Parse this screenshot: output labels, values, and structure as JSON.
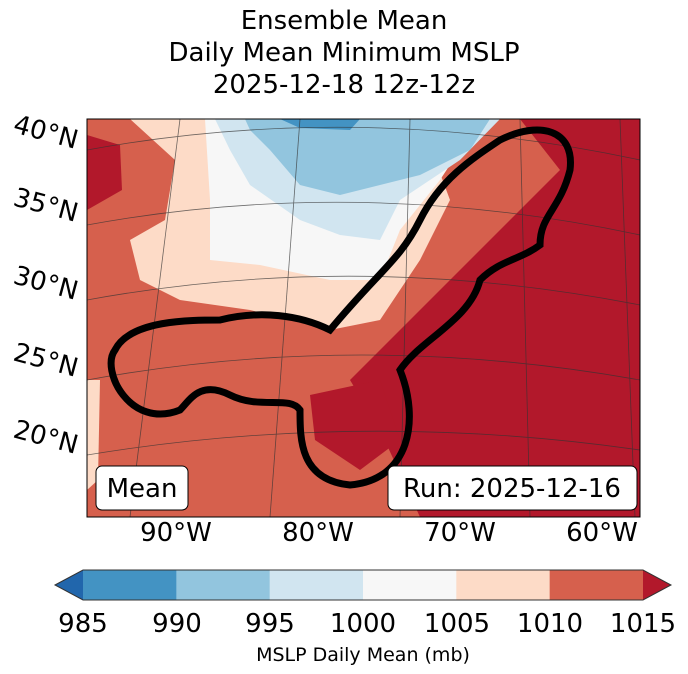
{
  "chart_data": {
    "type": "heatmap",
    "title_lines": [
      "Ensemble Mean",
      "Daily Mean Minimum MSLP",
      "2025-12-18 12z-12z"
    ],
    "map_region": "Eastern United States, Gulf of Mexico and Western Atlantic",
    "lat_tick_labels": [
      "40°N",
      "35°N",
      "30°N",
      "25°N",
      "20°N"
    ],
    "lon_tick_labels": [
      "90°W",
      "80°W",
      "70°W",
      "60°W"
    ],
    "lat_range": [
      15,
      41
    ],
    "lon_range": [
      -97,
      -60
    ],
    "annotations": {
      "left": "Mean",
      "right": "Run: 2025-12-16"
    },
    "colorbar": {
      "label": "MSLP Daily Mean (mb)",
      "ticks": [
        "985",
        "990",
        "995",
        "1000",
        "1005",
        "1010",
        "1015"
      ],
      "bins": [
        {
          "range": "<985",
          "color": "#2166ac"
        },
        {
          "range": "985-990",
          "color": "#4393c3"
        },
        {
          "range": "990-995",
          "color": "#92c5de"
        },
        {
          "range": "995-1000",
          "color": "#d1e5f0"
        },
        {
          "range": "1000-1005",
          "color": "#f7f7f7"
        },
        {
          "range": "1005-1010",
          "color": "#fddbc7"
        },
        {
          "range": "1010-1015",
          "color": "#d6604d"
        },
        {
          "range": ">1015",
          "color": "#b2182b"
        }
      ],
      "extend": "both"
    },
    "contour": {
      "description": "thick black outline around Gulf of Mexico and US East Coast region"
    }
  }
}
